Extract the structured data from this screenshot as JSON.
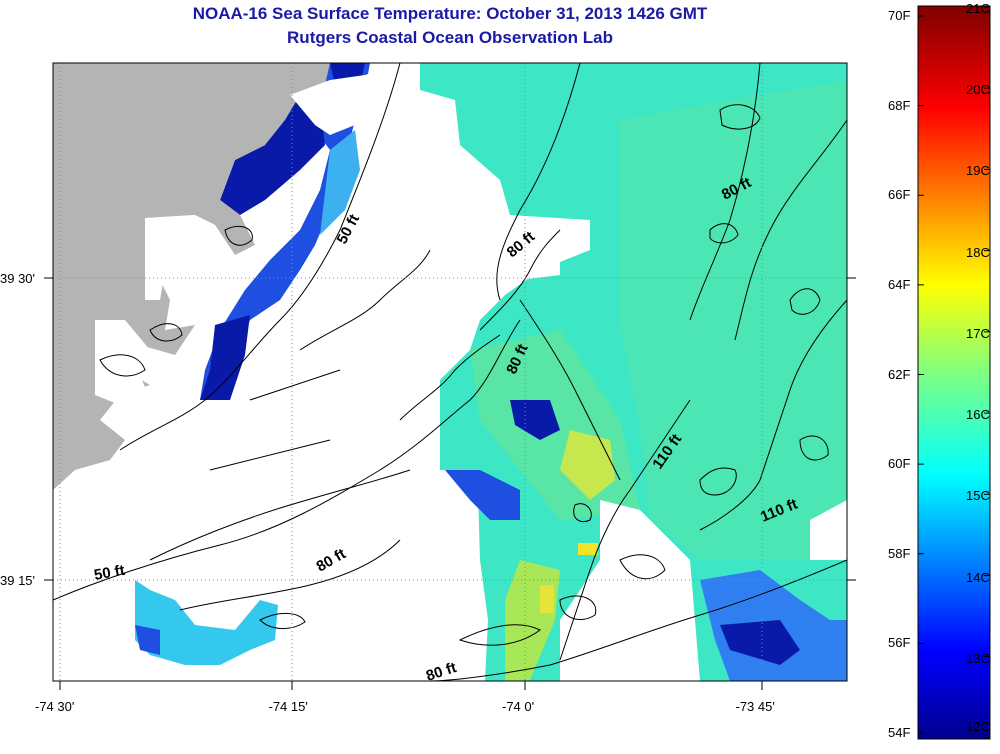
{
  "title": "NOAA-16 Sea Surface Temperature:  October 31, 2013 1426 GMT",
  "subtitle": "Rutgers Coastal Ocean Observation Lab",
  "lon_ticks": [
    {
      "label": "-74 30'",
      "value": -74.5
    },
    {
      "label": "-74 15'",
      "value": -74.25
    },
    {
      "label": "-74 0'",
      "value": -74.0
    },
    {
      "label": "-73 45'",
      "value": -73.75
    }
  ],
  "lat_ticks": [
    {
      "label": "39 30'",
      "value": 39.5
    },
    {
      "label": "39 15'",
      "value": 39.25
    }
  ],
  "depth_labels": [
    "50 ft",
    "80 ft",
    "80 ft",
    "80 ft",
    "110 ft",
    "110 ft",
    "80 ft",
    "50 ft",
    "80 ft"
  ],
  "colorbar": {
    "fahrenheit": [
      "70F",
      "68F",
      "66F",
      "64F",
      "62F",
      "60F",
      "58F",
      "56F",
      "54F"
    ],
    "celsius": [
      "21C",
      "20C",
      "19C",
      "18C",
      "17C",
      "16C",
      "15C",
      "14C",
      "13C",
      "12C"
    ]
  },
  "colors": {
    "title": "#1a1aa6",
    "land": "#b4b4b4",
    "water_typical": "#3fe8c8",
    "cold": "#0a1aa8",
    "warm": "#e6e640"
  }
}
